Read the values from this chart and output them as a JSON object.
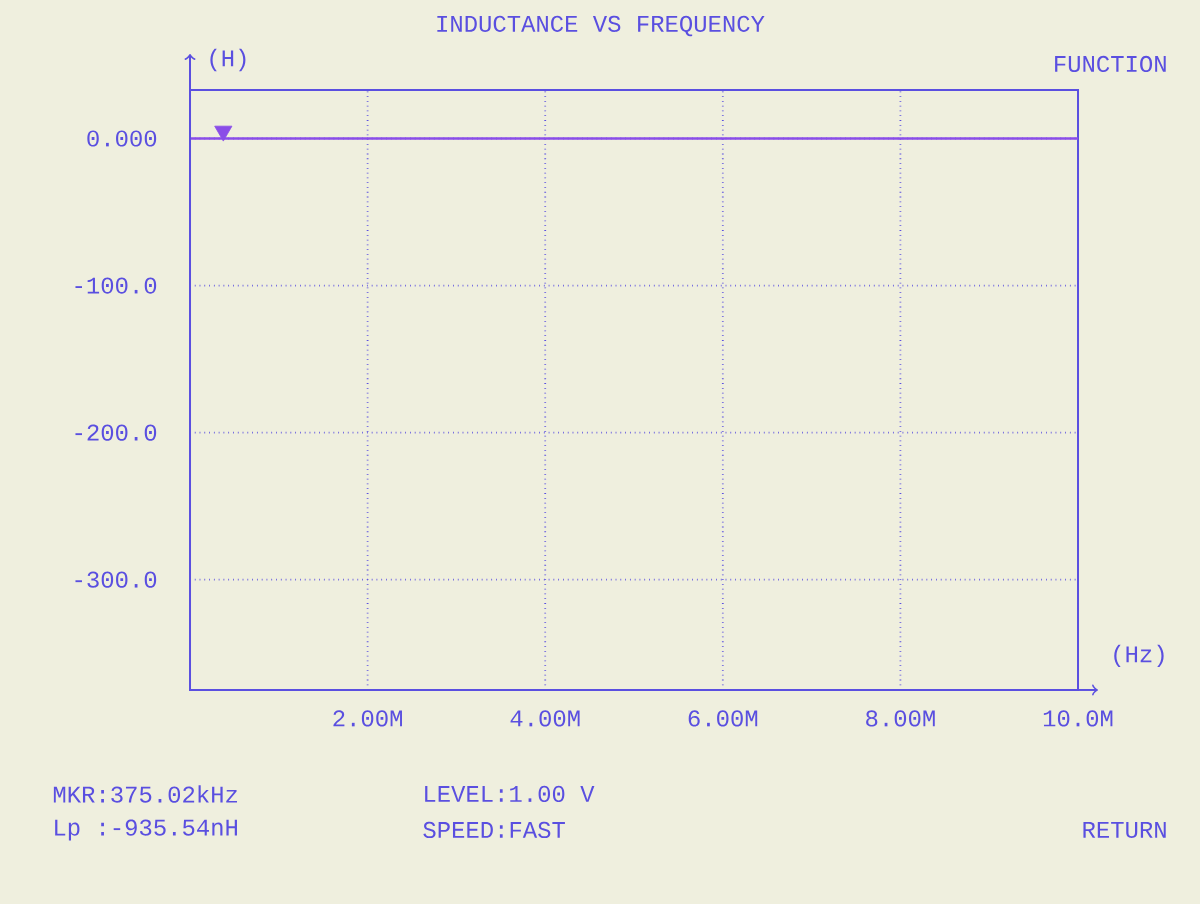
{
  "chart_data": {
    "type": "line",
    "title": "INDUCTANCE VS FREQUENCY",
    "xlabel": "(Hz)",
    "ylabel": "(H)",
    "x": [
      0,
      10
    ],
    "series": [
      {
        "color": "#8a4de8",
        "values": [
          0,
          0
        ]
      },
      {
        "type": "scatter",
        "color": "#8a4de8",
        "marker": "triangle",
        "x": [
          0.375
        ],
        "values": [
          5
        ]
      }
    ],
    "xlim": [
      0,
      10
    ],
    "ylim": [
      -375,
      33
    ],
    "xticks": [
      {
        "value": 2,
        "label": "2.00M"
      },
      {
        "value": 4,
        "label": "4.00M"
      },
      {
        "value": 6,
        "label": "6.00M"
      },
      {
        "value": 8,
        "label": "8.00M"
      },
      {
        "value": 10,
        "label": "10.0M"
      }
    ],
    "yticks": [
      {
        "value": 0,
        "label": "0.000"
      },
      {
        "value": -100,
        "label": "-100.0"
      },
      {
        "value": -200,
        "label": "-200.0"
      },
      {
        "value": -300,
        "label": "-300.0"
      }
    ],
    "grid": true,
    "line_style": "solid",
    "annotations": [
      "FUNCTION",
      "MKR:375.02kHz",
      "Lp :-935.54nH",
      "LEVEL:1.00 V",
      "SPEED:FAST",
      "RETURN"
    ]
  }
}
